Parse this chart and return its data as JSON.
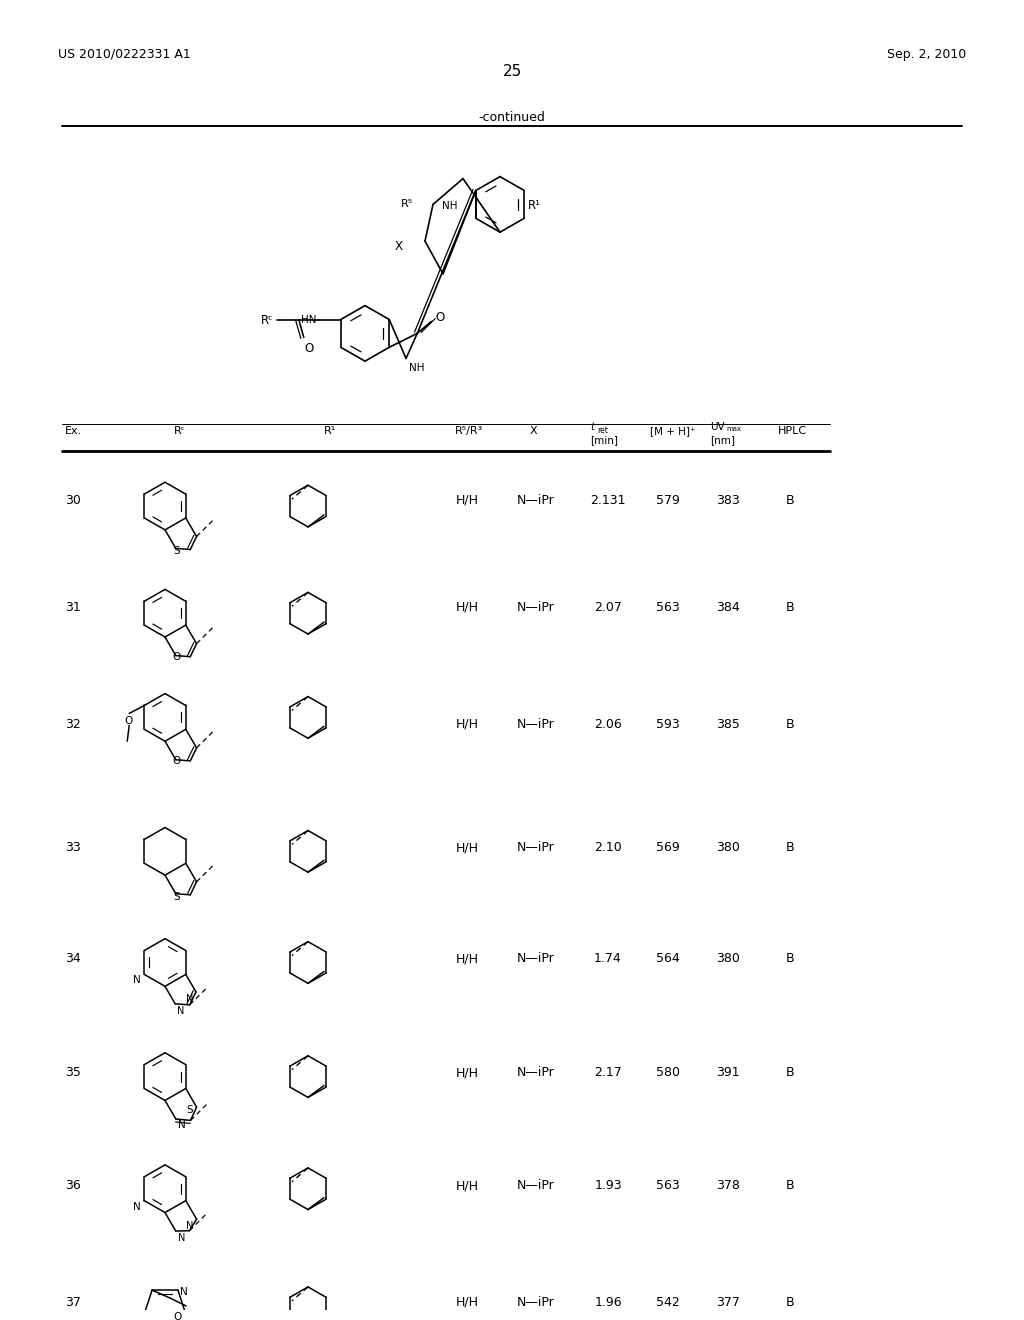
{
  "header_left": "US 2010/0222331 A1",
  "header_right": "Sep. 2, 2010",
  "page_number": "25",
  "continued_label": "-continued",
  "rows": [
    {
      "ex": "30",
      "r5r3": "H/H",
      "x": "N—iPr",
      "tret": "2.131",
      "mh": "579",
      "uvmax": "383",
      "hplc": "B"
    },
    {
      "ex": "31",
      "r5r3": "H/H",
      "x": "N—iPr",
      "tret": "2.07",
      "mh": "563",
      "uvmax": "384",
      "hplc": "B"
    },
    {
      "ex": "32",
      "r5r3": "H/H",
      "x": "N—iPr",
      "tret": "2.06",
      "mh": "593",
      "uvmax": "385",
      "hplc": "B"
    },
    {
      "ex": "33",
      "r5r3": "H/H",
      "x": "N—iPr",
      "tret": "2.10",
      "mh": "569",
      "uvmax": "380",
      "hplc": "B"
    },
    {
      "ex": "34",
      "r5r3": "H/H",
      "x": "N—iPr",
      "tret": "1.74",
      "mh": "564",
      "uvmax": "380",
      "hplc": "B"
    },
    {
      "ex": "35",
      "r5r3": "H/H",
      "x": "N—iPr",
      "tret": "2.17",
      "mh": "580",
      "uvmax": "391",
      "hplc": "B"
    },
    {
      "ex": "36",
      "r5r3": "H/H",
      "x": "N—iPr",
      "tret": "1.93",
      "mh": "563",
      "uvmax": "378",
      "hplc": "B"
    },
    {
      "ex": "37",
      "r5r3": "H/H",
      "x": "N—iPr",
      "tret": "1.96",
      "mh": "542",
      "uvmax": "377",
      "hplc": "B"
    }
  ],
  "bg_color": "#ffffff",
  "text_color": "#000000"
}
